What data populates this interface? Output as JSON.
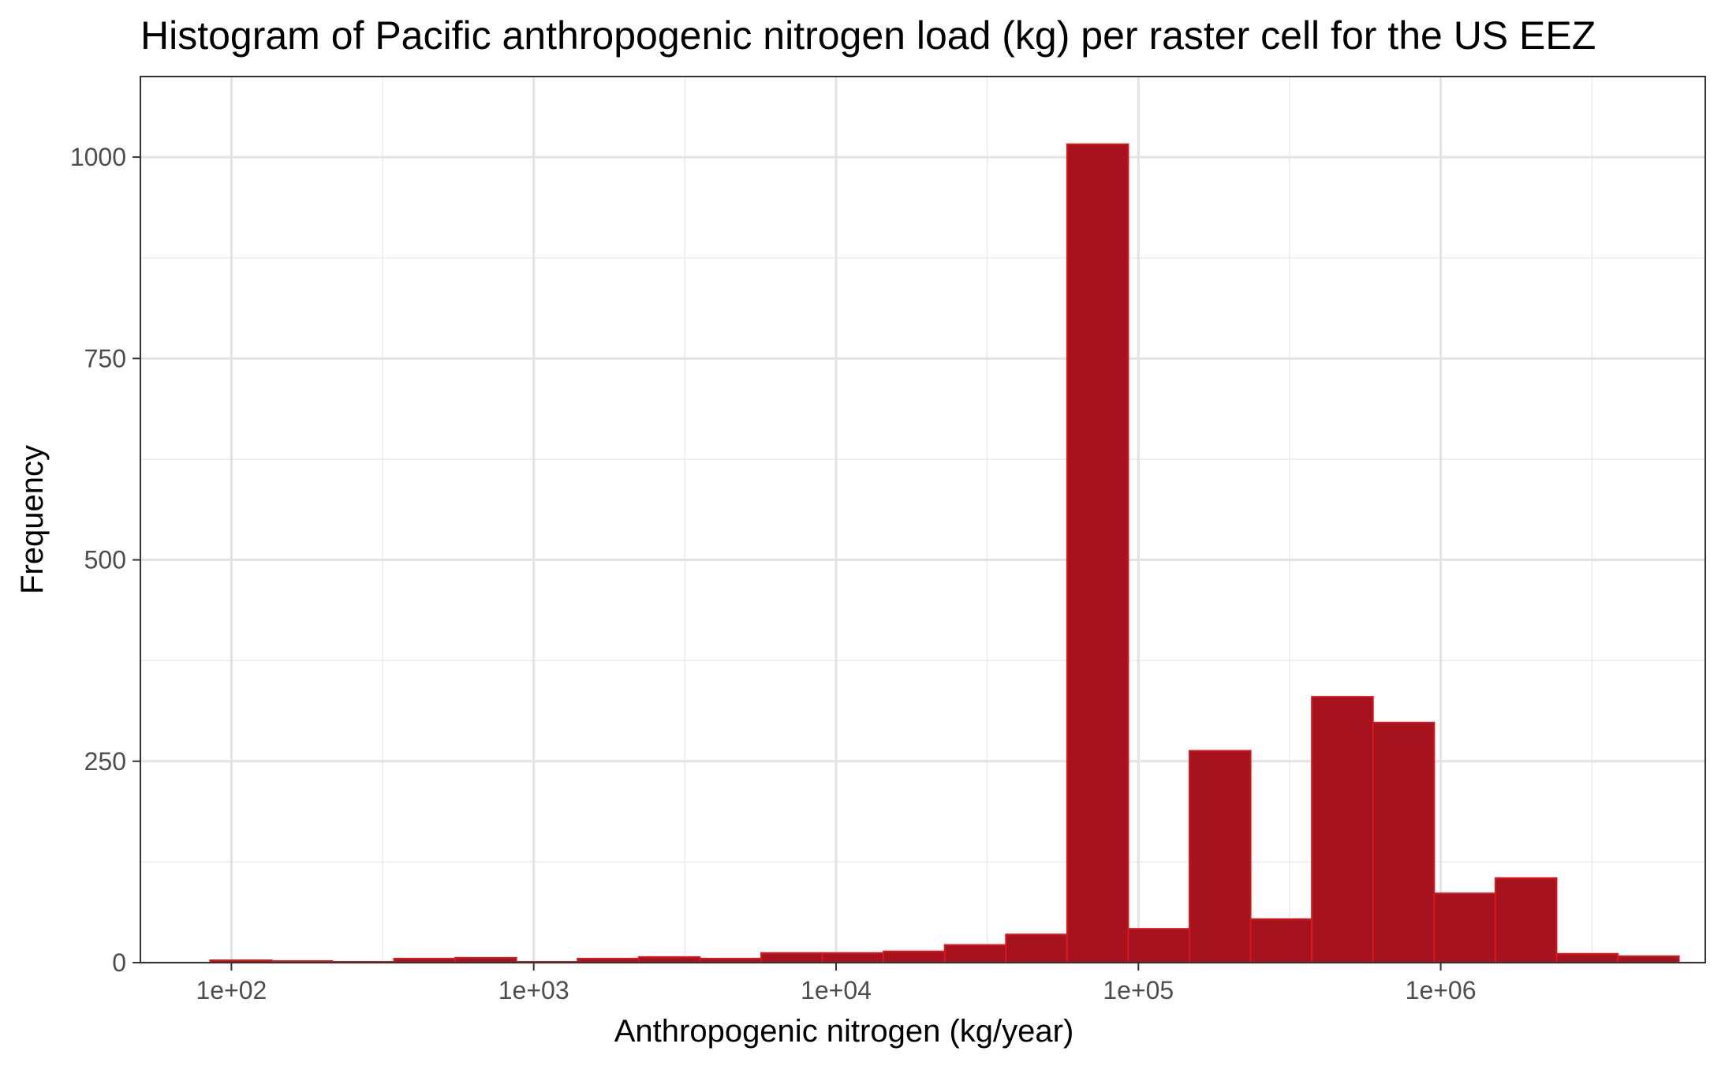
{
  "chart_data": {
    "type": "bar",
    "title": "Histogram of Pacific anthropogenic nitrogen load (kg) per raster cell for the US EEZ",
    "xlabel": "Anthropogenic nitrogen (kg/year)",
    "ylabel": "Frequency",
    "x_scale": "log10",
    "x_range": [
      50,
      7500
    ],
    "x_range_upper": 7500000,
    "ylim": [
      0,
      1100
    ],
    "x_ticks": [
      100,
      1000,
      10000,
      100000,
      1000000
    ],
    "x_tick_labels": [
      "1e+02",
      "1e+03",
      "1e+04",
      "1e+05",
      "1e+06"
    ],
    "y_ticks": [
      0,
      250,
      500,
      750,
      1000
    ],
    "y_tick_labels": [
      "0",
      "250",
      "500",
      "750",
      "1000"
    ],
    "grid": true,
    "bin_edges": [
      85,
      136,
      216,
      345,
      550,
      876,
      1396,
      2225,
      3546,
      5651,
      9006,
      14352,
      22871,
      36449,
      58087,
      92570,
      147524,
      235099,
      374661,
      597074,
      951516,
      1516369,
      2416536,
      3851052,
      6137131
    ],
    "bins": [
      {
        "x_min": 85,
        "x_max": 136,
        "count": 3
      },
      {
        "x_min": 136,
        "x_max": 216,
        "count": 2
      },
      {
        "x_min": 216,
        "x_max": 345,
        "count": 1
      },
      {
        "x_min": 345,
        "x_max": 550,
        "count": 5
      },
      {
        "x_min": 550,
        "x_max": 876,
        "count": 6
      },
      {
        "x_min": 876,
        "x_max": 1396,
        "count": 1
      },
      {
        "x_min": 1396,
        "x_max": 2225,
        "count": 5
      },
      {
        "x_min": 2225,
        "x_max": 3546,
        "count": 7
      },
      {
        "x_min": 3546,
        "x_max": 5651,
        "count": 5
      },
      {
        "x_min": 5651,
        "x_max": 9006,
        "count": 12
      },
      {
        "x_min": 9006,
        "x_max": 14352,
        "count": 12
      },
      {
        "x_min": 14352,
        "x_max": 22871,
        "count": 14
      },
      {
        "x_min": 22871,
        "x_max": 36449,
        "count": 22
      },
      {
        "x_min": 36449,
        "x_max": 58087,
        "count": 35
      },
      {
        "x_min": 58087,
        "x_max": 92570,
        "count": 1016
      },
      {
        "x_min": 92570,
        "x_max": 147524,
        "count": 42
      },
      {
        "x_min": 147524,
        "x_max": 235099,
        "count": 263
      },
      {
        "x_min": 235099,
        "x_max": 374661,
        "count": 54
      },
      {
        "x_min": 374661,
        "x_max": 597074,
        "count": 330
      },
      {
        "x_min": 597074,
        "x_max": 951516,
        "count": 298
      },
      {
        "x_min": 951516,
        "x_max": 1516369,
        "count": 86
      },
      {
        "x_min": 1516369,
        "x_max": 2416536,
        "count": 105
      },
      {
        "x_min": 2416536,
        "x_max": 3851052,
        "count": 11
      },
      {
        "x_min": 3851052,
        "x_max": 6137131,
        "count": 8
      }
    ],
    "bar_fill": "#a6121e",
    "bar_outline": "#d7191c"
  }
}
